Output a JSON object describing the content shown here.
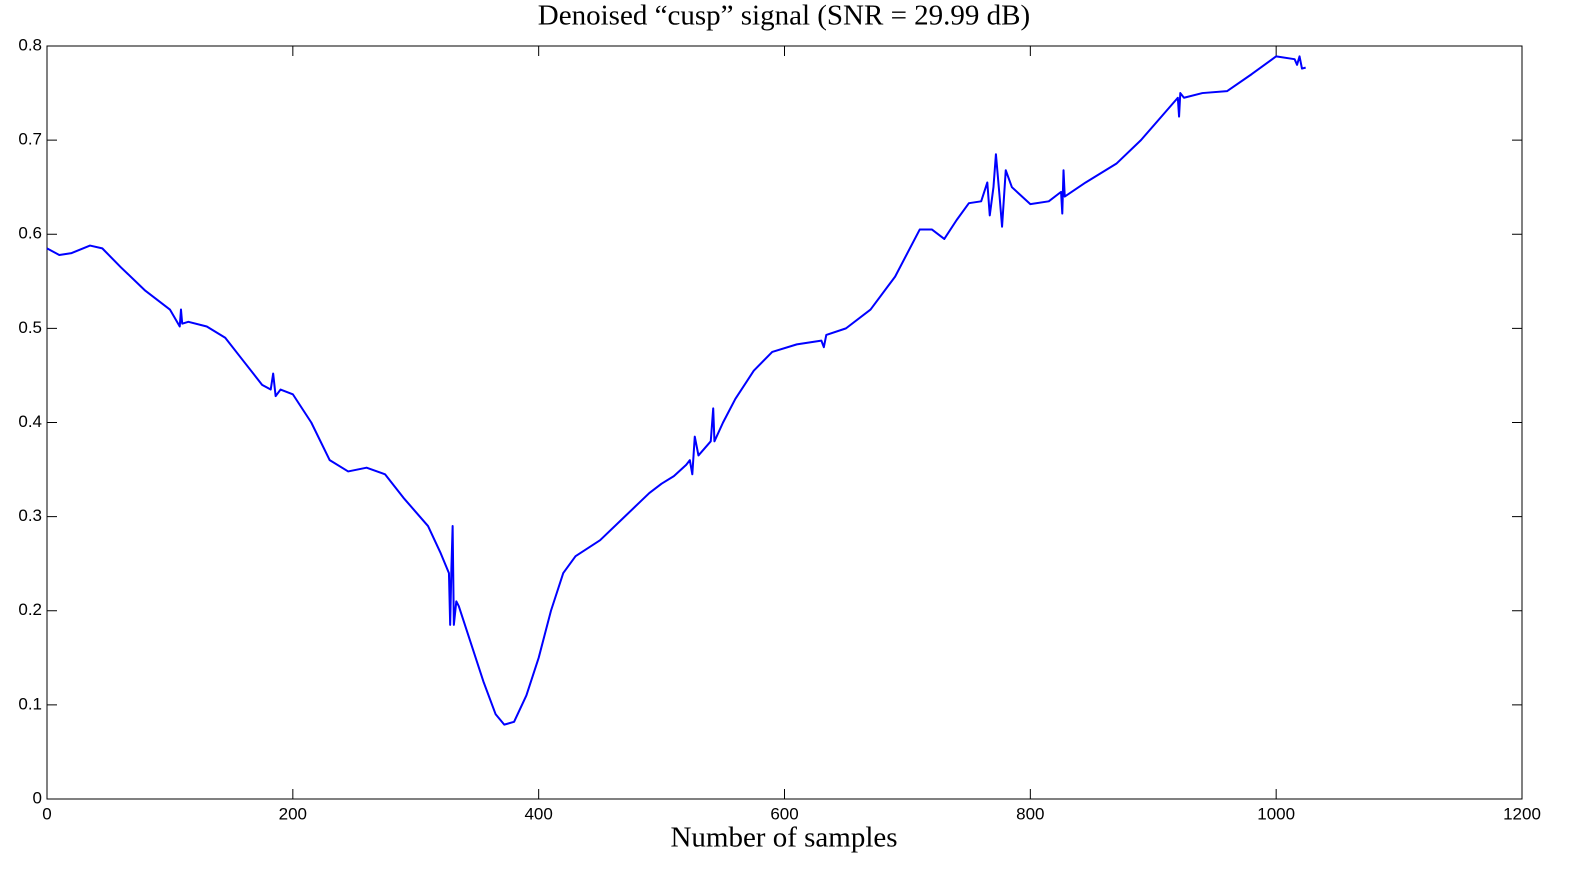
{
  "chart_data": {
    "type": "line",
    "title": "Denoised “cusp” signal (SNR = 29.99 dB)",
    "x_label": "Number of samples",
    "color": "#0000ff",
    "x": [
      0,
      10,
      20,
      35,
      45,
      60,
      80,
      100,
      108,
      109,
      110,
      115,
      130,
      145,
      160,
      175,
      182,
      184,
      186,
      190,
      200,
      215,
      230,
      245,
      260,
      275,
      290,
      300,
      310,
      320,
      327,
      328,
      329,
      330,
      331,
      333,
      335,
      345,
      355,
      365,
      372,
      380,
      390,
      400,
      410,
      420,
      430,
      450,
      470,
      490,
      500,
      510,
      520,
      523,
      525,
      527,
      530,
      540,
      542,
      543,
      550,
      560,
      575,
      590,
      610,
      630,
      632,
      634,
      650,
      670,
      690,
      710,
      720,
      730,
      740,
      750,
      760,
      765,
      767,
      770,
      772,
      775,
      777,
      780,
      785,
      800,
      815,
      825,
      826,
      827,
      828,
      845,
      870,
      890,
      910,
      920,
      921,
      922,
      925,
      940,
      960,
      980,
      1000,
      1015,
      1017,
      1019,
      1021,
      1024
    ],
    "values": [
      0.585,
      0.578,
      0.58,
      0.588,
      0.585,
      0.565,
      0.54,
      0.52,
      0.502,
      0.52,
      0.505,
      0.507,
      0.502,
      0.49,
      0.465,
      0.44,
      0.435,
      0.452,
      0.428,
      0.435,
      0.43,
      0.4,
      0.36,
      0.348,
      0.352,
      0.345,
      0.32,
      0.305,
      0.29,
      0.262,
      0.24,
      0.185,
      0.245,
      0.29,
      0.185,
      0.21,
      0.205,
      0.165,
      0.125,
      0.09,
      0.079,
      0.082,
      0.11,
      0.15,
      0.2,
      0.24,
      0.258,
      0.275,
      0.3,
      0.325,
      0.335,
      0.343,
      0.355,
      0.36,
      0.345,
      0.385,
      0.365,
      0.38,
      0.415,
      0.38,
      0.4,
      0.425,
      0.455,
      0.475,
      0.483,
      0.487,
      0.48,
      0.493,
      0.5,
      0.52,
      0.555,
      0.605,
      0.605,
      0.595,
      0.615,
      0.633,
      0.635,
      0.655,
      0.62,
      0.65,
      0.685,
      0.64,
      0.608,
      0.668,
      0.65,
      0.632,
      0.635,
      0.645,
      0.622,
      0.668,
      0.64,
      0.655,
      0.675,
      0.7,
      0.73,
      0.745,
      0.725,
      0.75,
      0.745,
      0.75,
      0.752,
      0.77,
      0.789,
      0.786,
      0.78,
      0.789,
      0.776,
      0.777
    ],
    "xlim": [
      0,
      1200
    ],
    "xticks": [
      0,
      200,
      400,
      600,
      800,
      1000,
      1200
    ],
    "ylim": [
      0,
      0.8
    ],
    "yticks": [
      0,
      0.1,
      0.2,
      0.3,
      0.4,
      0.5,
      0.6,
      0.7,
      0.8
    ]
  }
}
